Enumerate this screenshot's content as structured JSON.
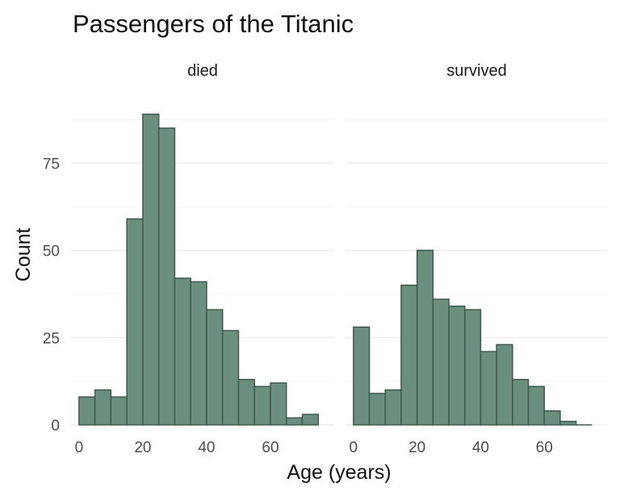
{
  "chart_data": {
    "type": "bar",
    "title": "Passengers of the Titanic",
    "xlabel": "Age (years)",
    "ylabel": "Count",
    "xlim": [
      -2.5,
      80
    ],
    "ylim": [
      0,
      91
    ],
    "xticks": [
      0,
      20,
      40,
      60
    ],
    "yticks": [
      0,
      25,
      50,
      75
    ],
    "bin_width": 5,
    "bin_starts": [
      0,
      5,
      10,
      15,
      20,
      25,
      30,
      35,
      40,
      45,
      50,
      55,
      60,
      65,
      70
    ],
    "bar_fill": "#6b8e7f",
    "bar_stroke": "#3e5a4e",
    "grid": true,
    "legend": "none",
    "series": [
      {
        "name": "died",
        "values": [
          8,
          10,
          8,
          59,
          89,
          85,
          42,
          41,
          33,
          27,
          13,
          11,
          12,
          2,
          3
        ]
      },
      {
        "name": "survived",
        "values": [
          28,
          9,
          10,
          40,
          50,
          36,
          34,
          33,
          21,
          23,
          13,
          11,
          4,
          1,
          0
        ]
      }
    ]
  }
}
